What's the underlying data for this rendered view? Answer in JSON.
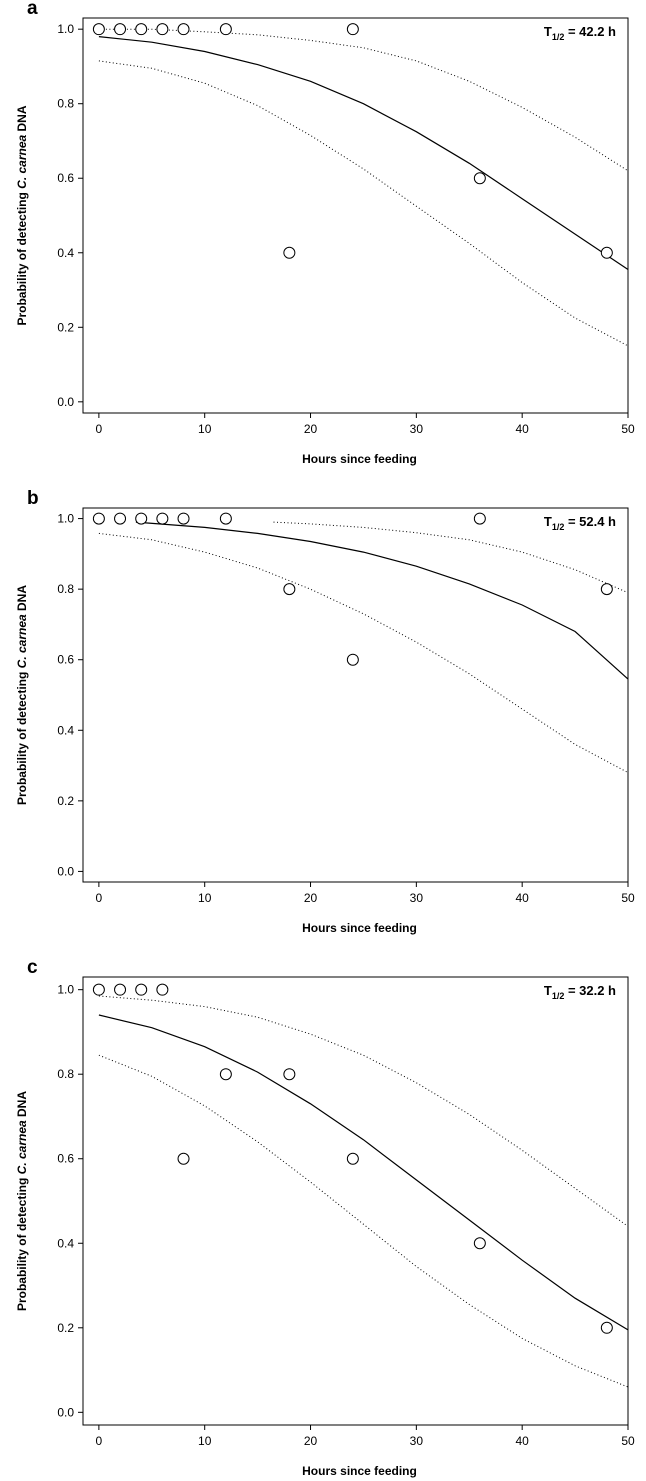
{
  "figure": {
    "panels": [
      {
        "letter": "a",
        "annotation": {
          "prefix": "T",
          "subscript": "1/2",
          "suffix": " = 42.2 h"
        }
      },
      {
        "letter": "b",
        "annotation": {
          "prefix": "T",
          "subscript": "1/2",
          "suffix": " = 52.4 h"
        }
      },
      {
        "letter": "c",
        "annotation": {
          "prefix": "T",
          "subscript": "1/2",
          "suffix": " = 32.2 h"
        }
      }
    ]
  },
  "chart_data": [
    {
      "type": "scatter",
      "panel": "a",
      "xlabel": "Hours since feeding",
      "ylabel": {
        "prefix": "Probability of detecting ",
        "italic": "C. carnea",
        "suffix": " DNA"
      },
      "xlim": [
        -1.5,
        50
      ],
      "ylim": [
        -0.03,
        1.03
      ],
      "xticks": [
        0,
        10,
        20,
        30,
        40,
        50
      ],
      "yticks": [
        0.0,
        0.2,
        0.4,
        0.6,
        0.8,
        1.0
      ],
      "points": [
        {
          "x": 0,
          "y": 1.0
        },
        {
          "x": 2,
          "y": 1.0
        },
        {
          "x": 4,
          "y": 1.0
        },
        {
          "x": 6,
          "y": 1.0
        },
        {
          "x": 8,
          "y": 1.0
        },
        {
          "x": 12,
          "y": 1.0
        },
        {
          "x": 18,
          "y": 0.4
        },
        {
          "x": 24,
          "y": 1.0
        },
        {
          "x": 36,
          "y": 0.6
        },
        {
          "x": 48,
          "y": 0.4
        }
      ],
      "fit": [
        [
          0,
          0.98
        ],
        [
          5,
          0.965
        ],
        [
          10,
          0.94
        ],
        [
          15,
          0.905
        ],
        [
          20,
          0.86
        ],
        [
          25,
          0.8
        ],
        [
          30,
          0.725
        ],
        [
          35,
          0.64
        ],
        [
          40,
          0.545
        ],
        [
          45,
          0.45
        ],
        [
          50,
          0.355
        ]
      ],
      "ci_upper": [
        [
          0,
          1.0
        ],
        [
          5,
          1.0
        ],
        [
          10,
          0.993
        ],
        [
          15,
          0.985
        ],
        [
          20,
          0.97
        ],
        [
          25,
          0.95
        ],
        [
          30,
          0.915
        ],
        [
          35,
          0.86
        ],
        [
          40,
          0.79
        ],
        [
          45,
          0.71
        ],
        [
          50,
          0.62
        ]
      ],
      "ci_lower": [
        [
          0,
          0.915
        ],
        [
          5,
          0.895
        ],
        [
          10,
          0.855
        ],
        [
          15,
          0.795
        ],
        [
          20,
          0.715
        ],
        [
          25,
          0.625
        ],
        [
          30,
          0.525
        ],
        [
          35,
          0.425
        ],
        [
          40,
          0.32
        ],
        [
          45,
          0.225
        ],
        [
          50,
          0.15
        ]
      ],
      "ci_upper_start_x": 12.5
    },
    {
      "type": "scatter",
      "panel": "b",
      "xlabel": "Hours since feeding",
      "ylabel": {
        "prefix": "Probability of detecting ",
        "italic": "C. carnea",
        "suffix": " DNA"
      },
      "xlim": [
        -1.5,
        50
      ],
      "ylim": [
        -0.03,
        1.03
      ],
      "xticks": [
        0,
        10,
        20,
        30,
        40,
        50
      ],
      "yticks": [
        0.0,
        0.2,
        0.4,
        0.6,
        0.8,
        1.0
      ],
      "points": [
        {
          "x": 0,
          "y": 1.0
        },
        {
          "x": 2,
          "y": 1.0
        },
        {
          "x": 4,
          "y": 1.0
        },
        {
          "x": 6,
          "y": 1.0
        },
        {
          "x": 8,
          "y": 1.0
        },
        {
          "x": 12,
          "y": 1.0
        },
        {
          "x": 18,
          "y": 0.8
        },
        {
          "x": 24,
          "y": 0.6
        },
        {
          "x": 36,
          "y": 1.0
        },
        {
          "x": 48,
          "y": 0.8
        }
      ],
      "fit": [
        [
          3.5,
          0.99
        ],
        [
          10,
          0.975
        ],
        [
          15,
          0.958
        ],
        [
          20,
          0.935
        ],
        [
          25,
          0.905
        ],
        [
          30,
          0.865
        ],
        [
          35,
          0.815
        ],
        [
          40,
          0.755
        ],
        [
          45,
          0.68
        ],
        [
          50,
          0.545
        ]
      ],
      "ci_upper": [
        [
          16.5,
          0.99
        ],
        [
          20,
          0.985
        ],
        [
          25,
          0.975
        ],
        [
          30,
          0.96
        ],
        [
          35,
          0.94
        ],
        [
          40,
          0.905
        ],
        [
          45,
          0.855
        ],
        [
          50,
          0.79
        ]
      ],
      "ci_lower": [
        [
          0,
          0.958
        ],
        [
          5,
          0.94
        ],
        [
          10,
          0.905
        ],
        [
          15,
          0.86
        ],
        [
          20,
          0.8
        ],
        [
          25,
          0.73
        ],
        [
          30,
          0.65
        ],
        [
          35,
          0.56
        ],
        [
          40,
          0.46
        ],
        [
          45,
          0.36
        ],
        [
          50,
          0.28
        ]
      ],
      "ci_upper_start_x": 16.5
    },
    {
      "type": "scatter",
      "panel": "c",
      "xlabel": "Hours since feeding",
      "ylabel": {
        "prefix": "Probability of detecting ",
        "italic": "C. carnea",
        "suffix": " DNA"
      },
      "xlim": [
        -1.5,
        50
      ],
      "ylim": [
        -0.03,
        1.03
      ],
      "xticks": [
        0,
        10,
        20,
        30,
        40,
        50
      ],
      "yticks": [
        0.0,
        0.2,
        0.4,
        0.6,
        0.8,
        1.0
      ],
      "points": [
        {
          "x": 0,
          "y": 1.0
        },
        {
          "x": 2,
          "y": 1.0
        },
        {
          "x": 4,
          "y": 1.0
        },
        {
          "x": 6,
          "y": 1.0
        },
        {
          "x": 8,
          "y": 0.6
        },
        {
          "x": 12,
          "y": 0.8
        },
        {
          "x": 18,
          "y": 0.8
        },
        {
          "x": 24,
          "y": 0.6
        },
        {
          "x": 36,
          "y": 0.4
        },
        {
          "x": 48,
          "y": 0.2
        }
      ],
      "fit": [
        [
          0,
          0.94
        ],
        [
          5,
          0.91
        ],
        [
          10,
          0.865
        ],
        [
          15,
          0.805
        ],
        [
          20,
          0.73
        ],
        [
          25,
          0.645
        ],
        [
          30,
          0.55
        ],
        [
          35,
          0.455
        ],
        [
          40,
          0.36
        ],
        [
          45,
          0.27
        ],
        [
          50,
          0.195
        ]
      ],
      "ci_upper": [
        [
          0,
          0.985
        ],
        [
          5,
          0.975
        ],
        [
          10,
          0.96
        ],
        [
          15,
          0.935
        ],
        [
          20,
          0.895
        ],
        [
          25,
          0.845
        ],
        [
          30,
          0.78
        ],
        [
          35,
          0.705
        ],
        [
          40,
          0.62
        ],
        [
          45,
          0.53
        ],
        [
          50,
          0.44
        ]
      ],
      "ci_lower": [
        [
          0,
          0.845
        ],
        [
          5,
          0.795
        ],
        [
          10,
          0.725
        ],
        [
          15,
          0.64
        ],
        [
          20,
          0.545
        ],
        [
          25,
          0.445
        ],
        [
          30,
          0.345
        ],
        [
          35,
          0.255
        ],
        [
          40,
          0.175
        ],
        [
          45,
          0.11
        ],
        [
          50,
          0.06
        ]
      ],
      "ci_upper_start_x": 0
    }
  ]
}
